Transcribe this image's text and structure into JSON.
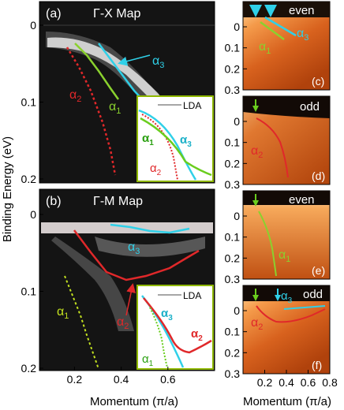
{
  "figure": {
    "y_axis_label": "Binding Energy (eV)",
    "x_axis_label_left": "Momentum (π/a)",
    "x_axis_label_right": "Momentum (π/a)"
  },
  "panels": {
    "a": {
      "tag": "(a)",
      "title": "Γ-X Map",
      "y_ticks": [
        "0",
        "0.1",
        "0.2"
      ],
      "y_values": [
        0,
        0.1,
        0.2
      ]
    },
    "b": {
      "tag": "(b)",
      "title": "Γ-M Map",
      "y_ticks": [
        "0",
        "0.1",
        "0.2"
      ],
      "y_values": [
        0,
        0.1,
        0.2
      ],
      "x_ticks": [
        "0.2",
        "0.4",
        "0.6"
      ],
      "x_values": [
        0.2,
        0.4,
        0.6
      ]
    },
    "c": {
      "tag": "(c)",
      "parity": "even"
    },
    "d": {
      "tag": "(d)",
      "parity": "odd"
    },
    "e": {
      "tag": "(e)",
      "parity": "even"
    },
    "f": {
      "tag": "(f)",
      "parity": "odd"
    },
    "right_y_ticks": [
      "0",
      "0.1",
      "0.2",
      "0.3"
    ],
    "right_y_values": [
      0,
      0.1,
      0.2,
      0.3
    ],
    "right_x_ticks": [
      "0.2",
      "0.4",
      "0.6",
      "0.8"
    ],
    "right_x_values": [
      0.2,
      0.4,
      0.6,
      0.8
    ]
  },
  "bands": {
    "alpha1": {
      "label": "α",
      "sub": "1",
      "color": "#8ad12e"
    },
    "alpha2": {
      "label": "α",
      "sub": "2",
      "color": "#e0282a"
    },
    "alpha3": {
      "label": "α",
      "sub": "3",
      "color": "#2fd0e8"
    }
  },
  "insets": {
    "lda_label": "LDA"
  },
  "colors": {
    "border_inset": "#8fb800",
    "arrow_green": "#6acd1e",
    "arrow_cyan": "#2fd0e8"
  },
  "chart_data": [
    {
      "type": "heatmap",
      "panel": "a",
      "xlabel": "",
      "ylabel": "Binding Energy (eV)",
      "ylim": [
        0,
        0.2
      ],
      "series": [
        {
          "name": "α1",
          "x": [
            0.22,
            0.26,
            0.3,
            0.34,
            0.38,
            0.41
          ],
          "y": [
            0.015,
            0.03,
            0.045,
            0.06,
            0.08,
            0.095
          ]
        },
        {
          "name": "α2",
          "x": [
            0.2,
            0.24,
            0.27,
            0.3,
            0.32,
            0.34
          ],
          "y": [
            0.02,
            0.05,
            0.09,
            0.13,
            0.16,
            0.2
          ]
        },
        {
          "name": "α3",
          "x": [
            0.35,
            0.4,
            0.45,
            0.5,
            0.55
          ],
          "y": [
            0.005,
            0.03,
            0.055,
            0.08,
            0.1
          ]
        }
      ]
    },
    {
      "type": "heatmap",
      "panel": "b",
      "xlabel": "Momentum (π/a)",
      "ylabel": "Binding Energy (eV)",
      "ylim": [
        0,
        0.2
      ],
      "xlim": [
        0.05,
        0.8
      ],
      "series": [
        {
          "name": "α1",
          "x": [
            0.16,
            0.2,
            0.24,
            0.27,
            0.29,
            0.31
          ],
          "y": [
            0.07,
            0.1,
            0.13,
            0.16,
            0.18,
            0.2
          ]
        },
        {
          "name": "α2",
          "x": [
            0.17,
            0.24,
            0.32,
            0.4,
            0.5,
            0.6,
            0.7,
            0.75
          ],
          "y": [
            0.03,
            0.06,
            0.08,
            0.085,
            0.08,
            0.07,
            0.055,
            0.045
          ]
        },
        {
          "name": "α3",
          "x": [
            0.3,
            0.4,
            0.5,
            0.6,
            0.68
          ],
          "y": [
            0.01,
            0.013,
            0.015,
            0.015,
            0.012
          ]
        }
      ]
    },
    {
      "type": "heatmap",
      "panel": "c",
      "xlim": [
        0,
        0.8
      ],
      "ylim": [
        0,
        0.3
      ],
      "series": [
        {
          "name": "α1",
          "x": [
            0.2,
            0.3,
            0.4
          ],
          "y": [
            0.02,
            0.06,
            0.1
          ]
        },
        {
          "name": "α3",
          "x": [
            0.25,
            0.35,
            0.45
          ],
          "y": [
            0.0,
            0.04,
            0.08
          ]
        }
      ]
    },
    {
      "type": "heatmap",
      "panel": "d",
      "xlim": [
        0,
        0.8
      ],
      "ylim": [
        0,
        0.3
      ],
      "series": [
        {
          "name": "α2",
          "x": [
            0.2,
            0.3,
            0.38,
            0.44
          ],
          "y": [
            0.05,
            0.1,
            0.17,
            0.25
          ]
        }
      ]
    },
    {
      "type": "heatmap",
      "panel": "e",
      "xlim": [
        0,
        0.8
      ],
      "ylim": [
        0,
        0.3
      ],
      "series": [
        {
          "name": "α1",
          "x": [
            0.2,
            0.27,
            0.32,
            0.35
          ],
          "y": [
            0.05,
            0.12,
            0.2,
            0.28
          ]
        }
      ]
    },
    {
      "type": "heatmap",
      "panel": "f",
      "xlim": [
        0,
        0.8
      ],
      "ylim": [
        0,
        0.3
      ],
      "series": [
        {
          "name": "α2",
          "x": [
            0.18,
            0.25,
            0.4,
            0.55,
            0.7
          ],
          "y": [
            0.05,
            0.08,
            0.09,
            0.08,
            0.06
          ]
        },
        {
          "name": "α3",
          "x": [
            0.4,
            0.55,
            0.7
          ],
          "y": [
            0.01,
            0.012,
            0.01
          ]
        }
      ]
    }
  ]
}
